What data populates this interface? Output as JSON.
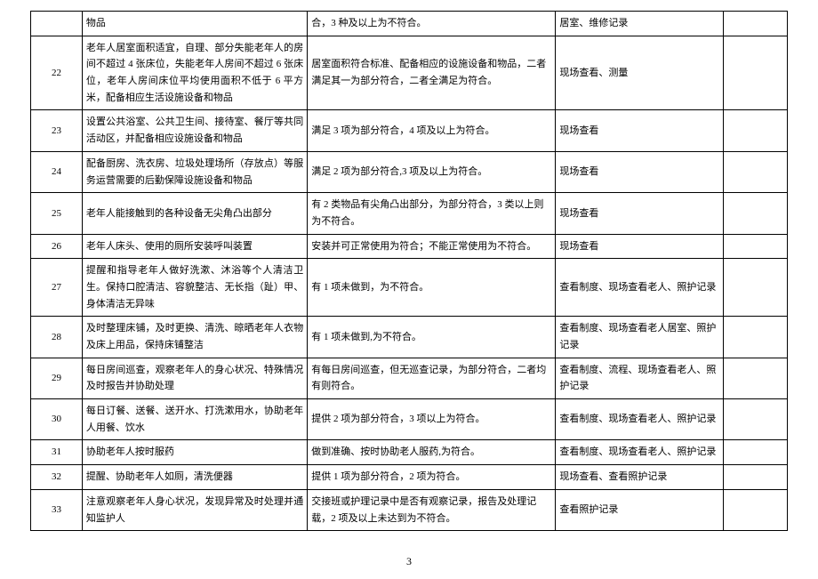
{
  "page_number": "3",
  "rows": [
    {
      "n": "",
      "c2": "物品",
      "c3": "合，3 种及以上为不符合。",
      "c4": "居室、维修记录",
      "c5": ""
    },
    {
      "n": "22",
      "c2": "老年人居室面积适宜，自理、部分失能老年人的房间不超过 4 张床位，失能老年人房间不超过 6 张床位，老年人房间床位平均使用面积不低于 6 平方米，配备相应生活设施设备和物品",
      "c3": "居室面积符合标准、配备相应的设施设备和物品，二者满足其一为部分符合，二者全满足为符合。",
      "c4": "现场查看、测量",
      "c5": ""
    },
    {
      "n": "23",
      "c2": "设置公共浴室、公共卫生间、接待室、餐厅等共同活动区，并配备相应设施设备和物品",
      "c3": "满足 3 项为部分符合，4 项及以上为符合。",
      "c4": "现场查看",
      "c5": ""
    },
    {
      "n": "24",
      "c2": "配备厨房、洗衣房、垃圾处理场所（存放点）等服务运营需要的后勤保障设施设备和物品",
      "c3": "满足 2 项为部分符合,3 项及以上为符合。",
      "c4": "现场查看",
      "c5": ""
    },
    {
      "n": "25",
      "c2": "老年人能接触到的各种设备无尖角凸出部分",
      "c3": "有 2 类物品有尖角凸出部分，为部分符合，3 类以上则为不符合。",
      "c4": "现场查看",
      "c5": ""
    },
    {
      "n": "26",
      "c2": "老年人床头、使用的厕所安装呼叫装置",
      "c3": "安装并可正常使用为符合；不能正常使用为不符合。",
      "c4": "现场查看",
      "c5": ""
    },
    {
      "n": "27",
      "c2": "提醒和指导老年人做好洗漱、沐浴等个人清洁卫生。保持口腔清洁、容貌整洁、无长指（趾）甲、身体清洁无异味",
      "c3": "有 1 项未做到，为不符合。",
      "c4": "查看制度、现场查看老人、照护记录",
      "c5": ""
    },
    {
      "n": "28",
      "c2": "及时整理床铺，及时更换、清洗、晾晒老年人衣物及床上用品，保持床铺整洁",
      "c3": "有 1 项未做到,为不符合。",
      "c4": "查看制度、现场查看老人居室、照护记录",
      "c5": ""
    },
    {
      "n": "29",
      "c2": "每日房间巡查，观察老年人的身心状况、特殊情况及时报告并协助处理",
      "c3": "有每日房间巡查，但无巡查记录，为部分符合，二者均有则符合。",
      "c4": "查看制度、流程、现场查看老人、照护记录",
      "c5": ""
    },
    {
      "n": "30",
      "c2": "每日订餐、送餐、送开水、打洗漱用水，协助老年人用餐、饮水",
      "c3": "提供 2 项为部分符合，3 项以上为符合。",
      "c4": "查看制度、现场查看老人、照护记录",
      "c5": ""
    },
    {
      "n": "31",
      "c2": "协助老年人按时服药",
      "c3": "做到准确、按时协助老人服药,为符合。",
      "c4": "查看制度、现场查看老人、照护记录",
      "c5": ""
    },
    {
      "n": "32",
      "c2": "提醒、协助老年人如厕，清洗便器",
      "c3": "提供 1 项为部分符合，2 项为符合。",
      "c4": "现场查看、查看照护记录",
      "c5": ""
    },
    {
      "n": "33",
      "c2": "注意观察老年人身心状况，发现异常及时处理并通知监护人",
      "c3": "交接班或护理记录中是否有观察记录，报告及处理记载，2 项及以上未达到为不符合。",
      "c4": "查看照护记录",
      "c5": ""
    }
  ]
}
